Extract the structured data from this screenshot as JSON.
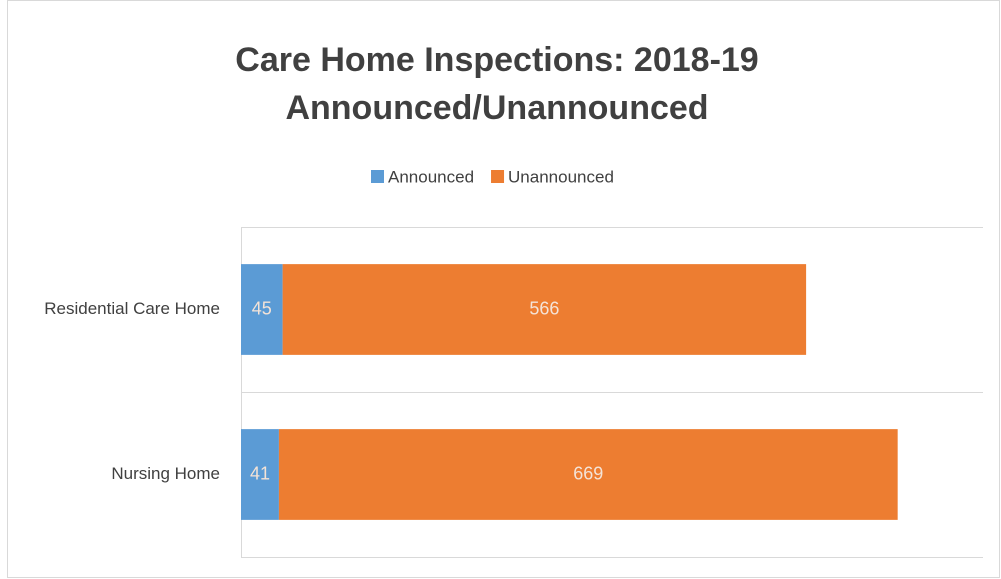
{
  "chart_data": {
    "type": "stacked-bar-horizontal",
    "title": [
      "Care Home Inspections: 2018-19",
      "Announced/Unannounced"
    ],
    "categories": [
      "Residential Care Home",
      "Nursing Home"
    ],
    "series": [
      {
        "name": "Announced",
        "color": "#5b9bd5",
        "values": [
          45,
          41
        ]
      },
      {
        "name": "Unannounced",
        "color": "#ed7d31",
        "values": [
          566,
          669
        ]
      }
    ],
    "legend": "top"
  }
}
